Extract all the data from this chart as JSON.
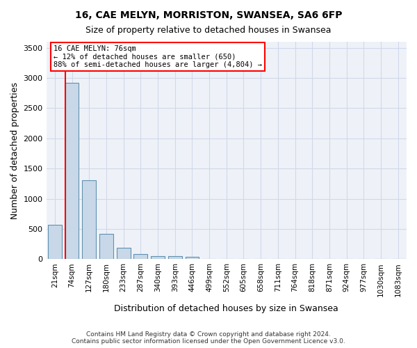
{
  "title_line1": "16, CAE MELYN, MORRISTON, SWANSEA, SA6 6FP",
  "title_line2": "Size of property relative to detached houses in Swansea",
  "xlabel": "Distribution of detached houses by size in Swansea",
  "ylabel": "Number of detached properties",
  "categories": [
    "21sqm",
    "74sqm",
    "127sqm",
    "180sqm",
    "233sqm",
    "287sqm",
    "340sqm",
    "393sqm",
    "446sqm",
    "499sqm",
    "552sqm",
    "605sqm",
    "658sqm",
    "711sqm",
    "764sqm",
    "818sqm",
    "871sqm",
    "924sqm",
    "977sqm",
    "1030sqm",
    "1083sqm"
  ],
  "bar_heights": [
    570,
    2920,
    1310,
    420,
    185,
    80,
    50,
    45,
    35,
    0,
    0,
    0,
    0,
    0,
    0,
    0,
    0,
    0,
    0,
    0,
    0
  ],
  "bar_color": "#c8d8e8",
  "bar_edge_color": "#6090b0",
  "grid_color": "#d0d8e8",
  "background_color": "#eef2f8",
  "red_line_x": 0.6,
  "ylim": [
    0,
    3600
  ],
  "yticks": [
    0,
    500,
    1000,
    1500,
    2000,
    2500,
    3000,
    3500
  ],
  "annotation_text": "16 CAE MELYN: 76sqm\n← 12% of detached houses are smaller (650)\n88% of semi-detached houses are larger (4,804) →",
  "footer_line1": "Contains HM Land Registry data © Crown copyright and database right 2024.",
  "footer_line2": "Contains public sector information licensed under the Open Government Licence v3.0."
}
